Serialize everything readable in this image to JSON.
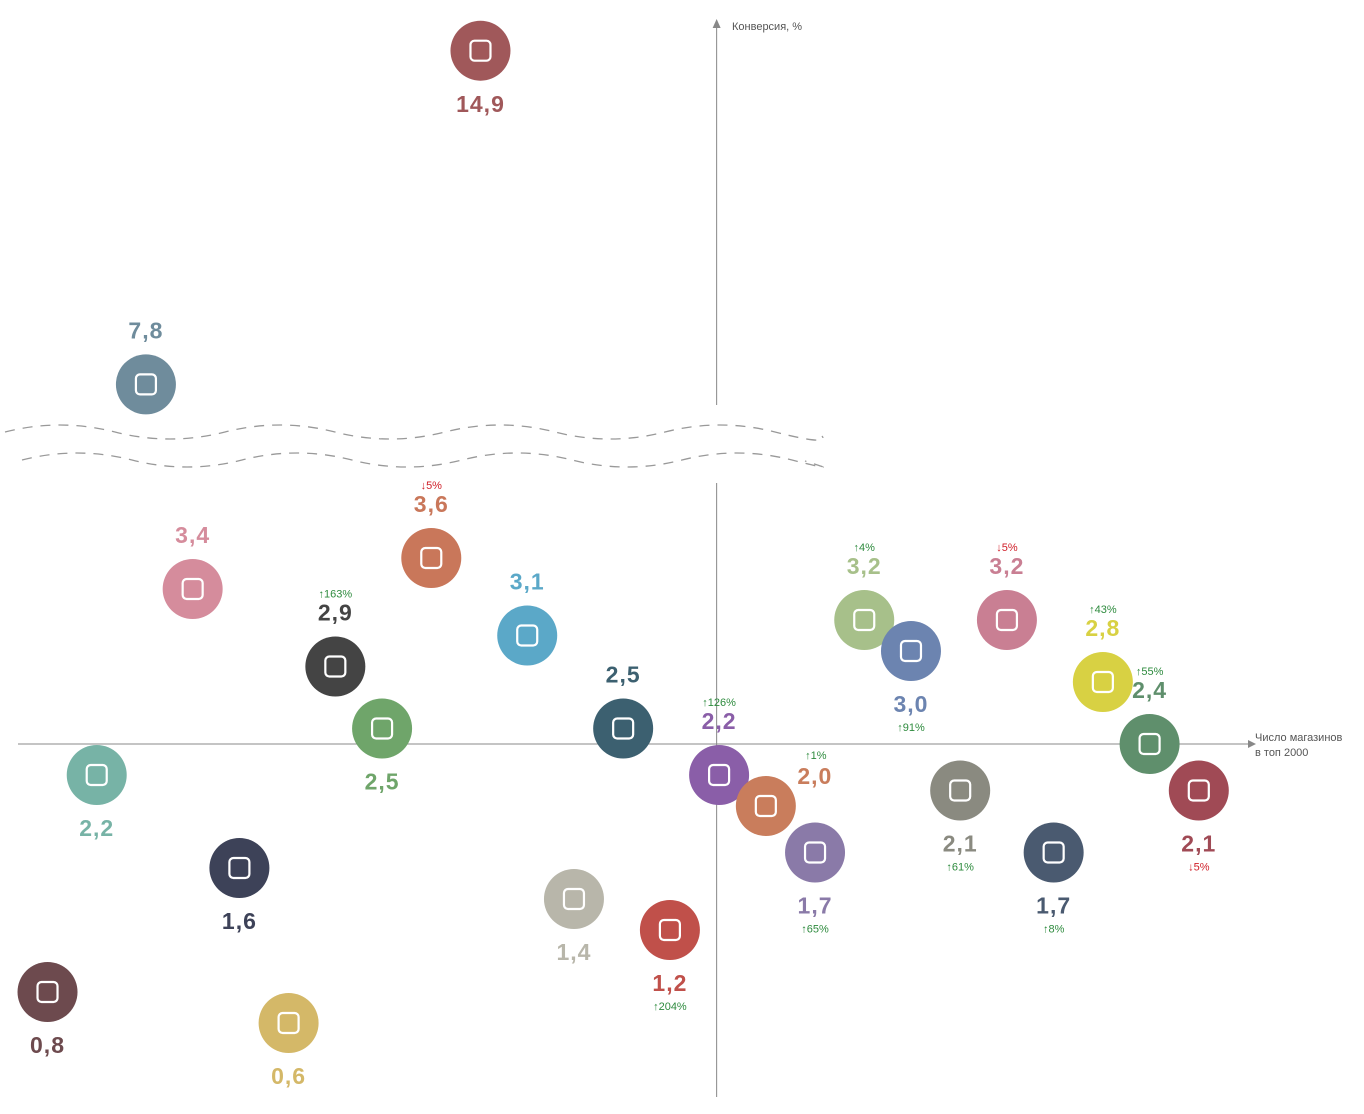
{
  "chart_data": {
    "type": "scatter",
    "y_label": "Конверсия, %",
    "x_label": [
      "Число магазинов",
      "в топ 2000"
    ],
    "xlim": [
      0,
      500
    ],
    "y_axis_at": 284,
    "x_axis_at": 2.4,
    "ybreak": [
      4.2,
      7
    ],
    "x": [
      188,
      52,
      71,
      168,
      207,
      129,
      148,
      246,
      32,
      285,
      304,
      324,
      344,
      363,
      402,
      441,
      460,
      480,
      383,
      421,
      90,
      226,
      265,
      12,
      110
    ],
    "values": [
      14.9,
      7.8,
      3.4,
      3.6,
      3.1,
      2.9,
      2.5,
      2.5,
      2.2,
      2.2,
      2.0,
      1.7,
      3.2,
      3.0,
      3.2,
      2.8,
      2.4,
      2.1,
      2.1,
      1.7,
      1.6,
      1.4,
      1.2,
      0.8,
      0.6
    ],
    "value_labels": [
      "14,9",
      "7,8",
      "3,4",
      "3,6",
      "3,1",
      "2,9",
      "2,5",
      "2,5",
      "2,2",
      "2,2",
      "2,0",
      "1,7",
      "3,2",
      "3,0",
      "3,2",
      "2,8",
      "2,4",
      "2,1",
      "2,1",
      "1,7",
      "1,6",
      "1,4",
      "1,2",
      "0,8",
      "0,6"
    ],
    "colors": [
      "#a0585a",
      "#6f8c9c",
      "#d58c9c",
      "#c9775a",
      "#5ba8c8",
      "#444444",
      "#6fa56a",
      "#3c6070",
      "#77b3a6",
      "#8a5ea8",
      "#c97d5c",
      "#8a7aa8",
      "#a7c08a",
      "#6c84b0",
      "#c97f93",
      "#d8d143",
      "#5f8f6c",
      "#a04a55",
      "#8a8a80",
      "#4a5a70",
      "#3d4258",
      "#b8b6aa",
      "#c0504a",
      "#6d4a4e",
      "#d4b868"
    ],
    "label_positions": [
      "below",
      "above",
      "above",
      "above",
      "above",
      "above",
      "below",
      "above",
      "below",
      "above",
      "right",
      "below",
      "above",
      "below",
      "above",
      "above",
      "above",
      "below",
      "below",
      "below",
      "below",
      "below",
      "below",
      "below",
      "below"
    ],
    "changes": [
      null,
      null,
      null,
      "↓5%",
      null,
      "↑163%",
      null,
      null,
      null,
      "↑126%",
      "↑1%",
      "↑65%",
      "↑4%",
      "↑91%",
      "↓5%",
      "↑43%",
      "↑55%",
      "↓5%",
      "↑61%",
      "↑8%",
      null,
      null,
      "↑204%",
      null,
      null
    ]
  }
}
